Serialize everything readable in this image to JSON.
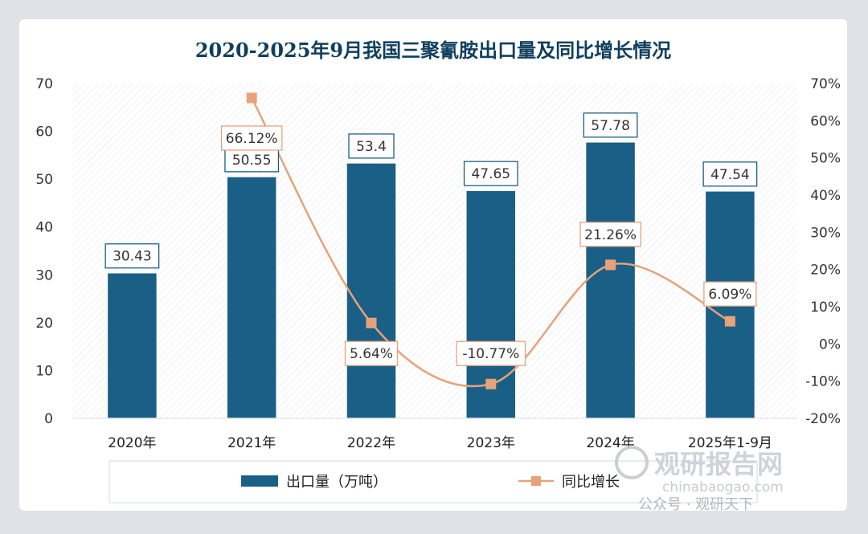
{
  "chart_data": {
    "type": "bar",
    "title": "2020-2025年9月我国三聚氰胺出口量及同比增长情况",
    "categories": [
      "2020年",
      "2021年",
      "2022年",
      "2023年",
      "2024年",
      "2025年1-9月"
    ],
    "series": [
      {
        "name": "出口量（万吨）",
        "type": "bar",
        "axis": "left",
        "values": [
          30.43,
          50.55,
          53.4,
          47.65,
          57.78,
          47.54
        ],
        "labels": [
          "30.43",
          "50.55",
          "53.4",
          "47.65",
          "57.78",
          "47.54"
        ],
        "color": "#1a5f86"
      },
      {
        "name": "同比增长",
        "type": "line",
        "axis": "right",
        "values": [
          null,
          66.12,
          5.64,
          -10.77,
          21.26,
          6.09
        ],
        "labels": [
          "",
          "66.12%",
          "5.64%",
          "-10.77%",
          "21.26%",
          "6.09%"
        ],
        "color": "#e8a27a"
      }
    ],
    "y_left": {
      "min": 0,
      "max": 70,
      "ticks": [
        "0",
        "10",
        "20",
        "30",
        "40",
        "50",
        "60",
        "70"
      ]
    },
    "y_right": {
      "min": -20,
      "max": 70,
      "ticks": [
        "-20%",
        "-10%",
        "0%",
        "10%",
        "20%",
        "30%",
        "40%",
        "50%",
        "60%",
        "70%"
      ]
    },
    "legend_position": "bottom",
    "grid": false
  },
  "watermark": {
    "brand": "观研报告网",
    "site": "chinabaogao.com",
    "social": "公众号 · 观研天下"
  }
}
